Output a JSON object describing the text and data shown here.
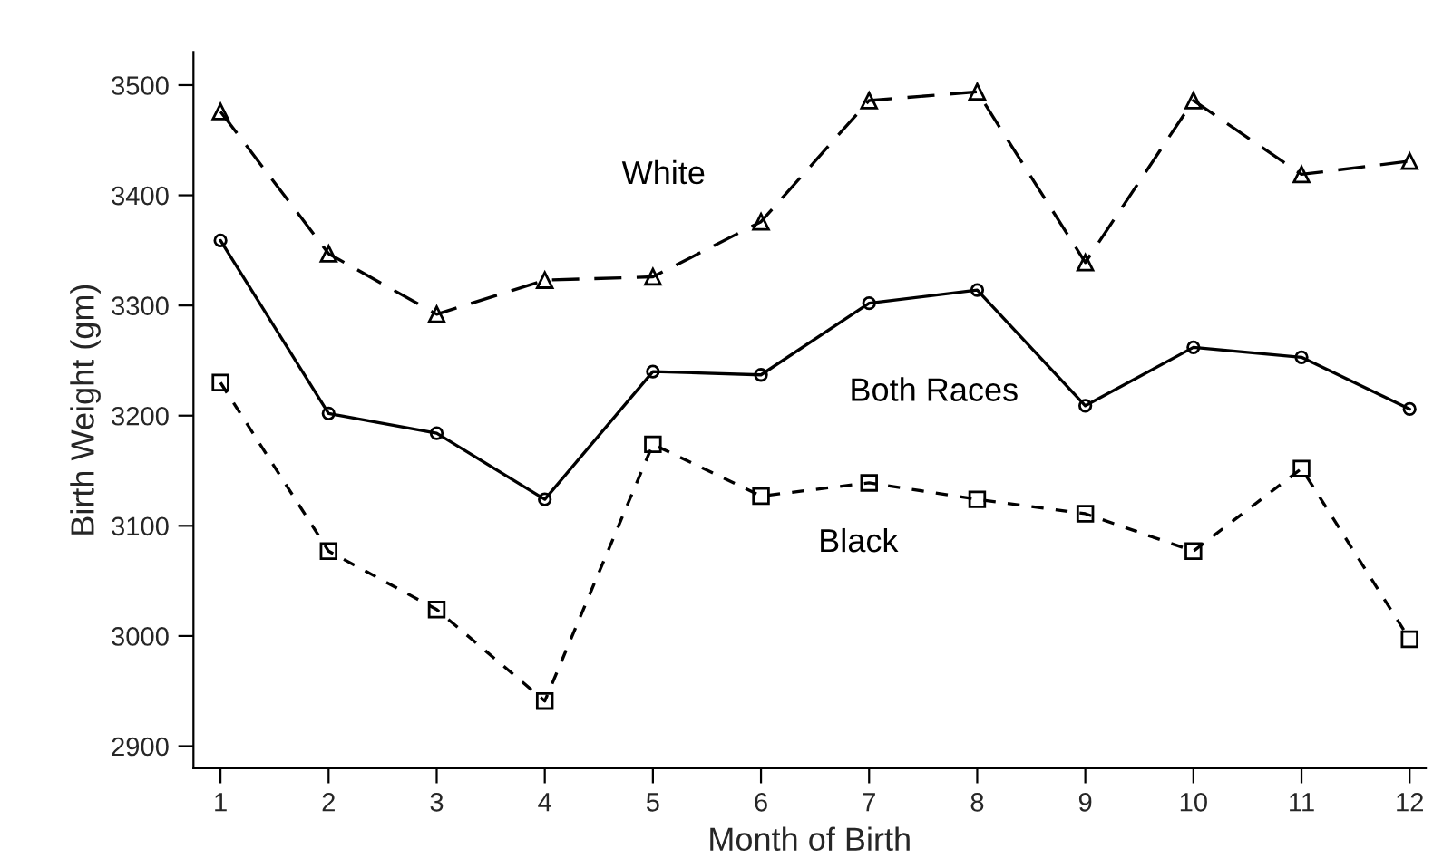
{
  "chart_data": {
    "type": "line",
    "xlabel": "Month of Birth",
    "ylabel": "Birth Weight (gm)",
    "x": [
      1,
      2,
      3,
      4,
      5,
      6,
      7,
      8,
      9,
      10,
      11,
      12
    ],
    "series": [
      {
        "name": "White",
        "color": "#000000",
        "marker": "triangle",
        "line_style": "dashed",
        "values": [
          3476,
          3347,
          3292,
          3323,
          3326,
          3376,
          3486,
          3494,
          3339,
          3486,
          3419,
          3431
        ]
      },
      {
        "name": "Both Races",
        "color": "#000000",
        "marker": "circle",
        "line_style": "solid",
        "values": [
          3359,
          3202,
          3184,
          3124,
          3240,
          3237,
          3302,
          3314,
          3209,
          3262,
          3253,
          3206
        ]
      },
      {
        "name": "Black",
        "color": "#000000",
        "marker": "square",
        "line_style": "dotted",
        "values": [
          3230,
          3077,
          3024,
          2941,
          3174,
          3127,
          3139,
          3124,
          3111,
          3077,
          3152,
          2997
        ]
      }
    ],
    "xlim": [
      0.75,
      12.15
    ],
    "ylim": [
      2880,
      3530
    ],
    "xticks": [
      1,
      2,
      3,
      4,
      5,
      6,
      7,
      8,
      9,
      10,
      11,
      12
    ],
    "yticks": [
      2900,
      3000,
      3100,
      3200,
      3300,
      3400,
      3500
    ],
    "grid": false,
    "legend": false
  }
}
